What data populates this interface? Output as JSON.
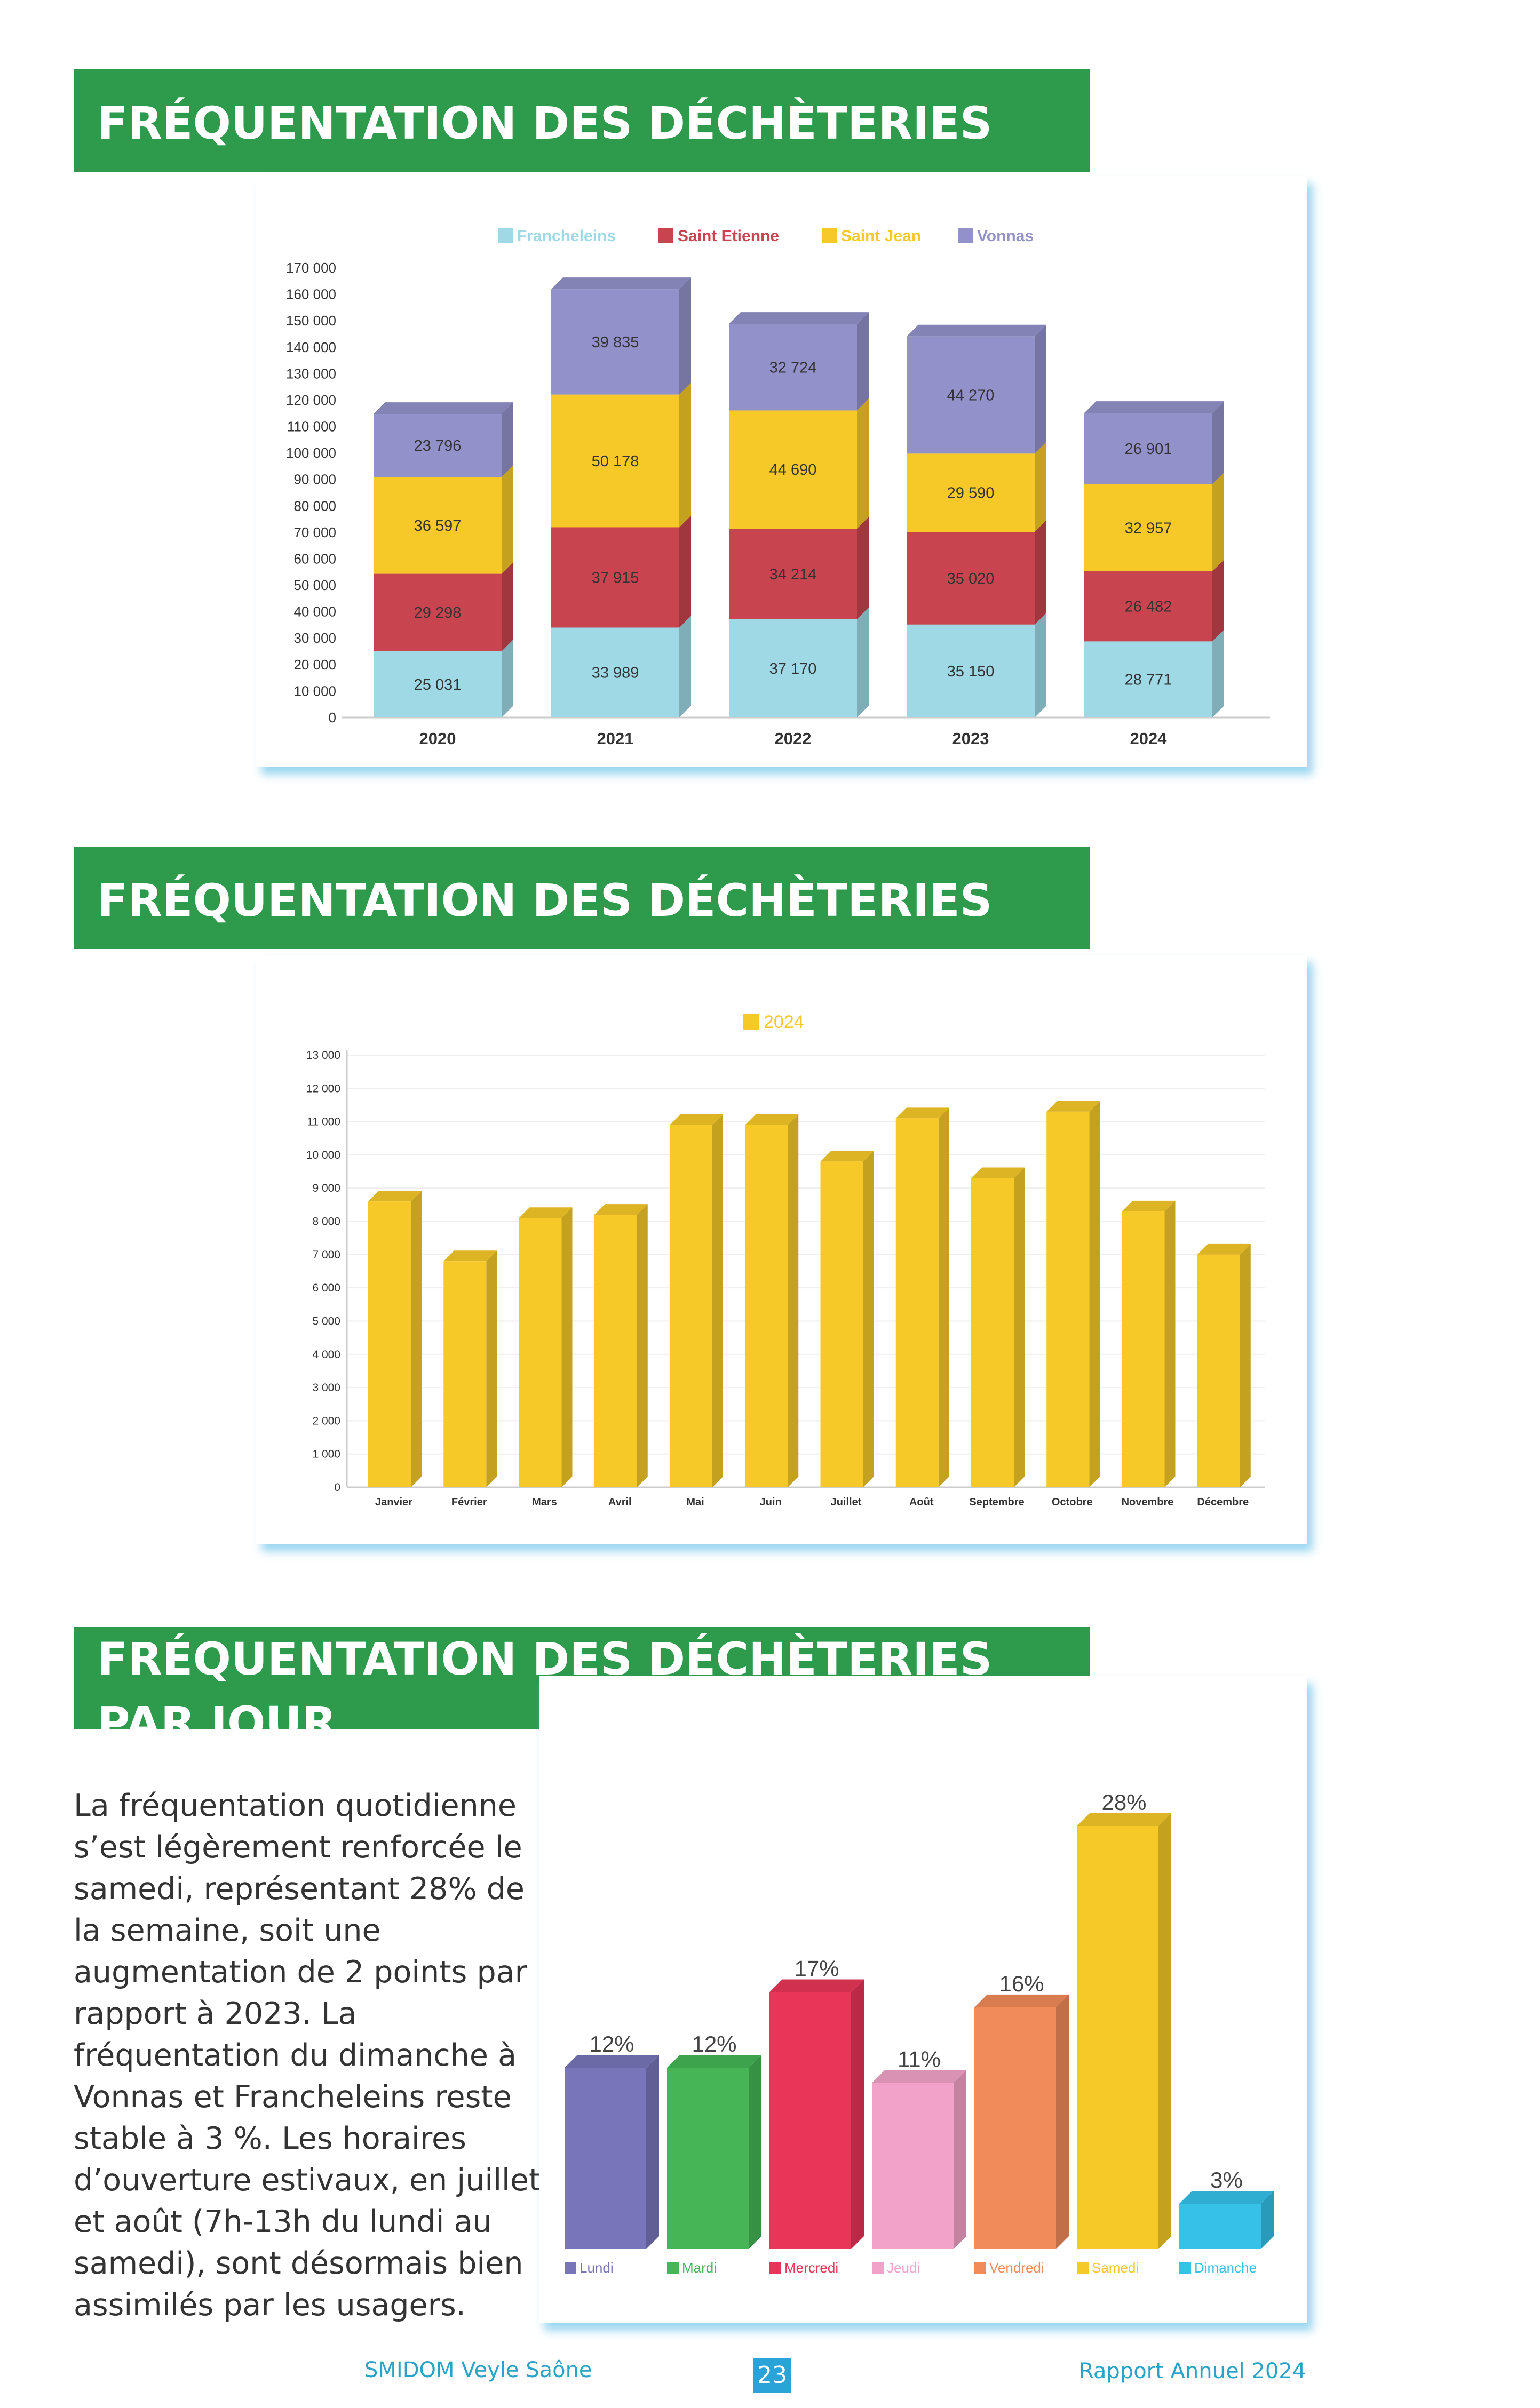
{
  "sections": [
    {
      "title": "FRÉQUENTATION DES DÉCHÈTERIES PAR AN"
    },
    {
      "title": "FRÉQUENTATION DES DÉCHÈTERIES PAR MOIS"
    },
    {
      "title": "FRÉQUENTATION DES DÉCHÈTERIES PAR JOUR"
    }
  ],
  "paragraph": "La fréquentation quotidienne s’est légèrement renforcée le samedi, représentant 28% de la semaine, soit une augmentation de 2 points par rapport à 2023. La fréquentation du dimanche à Vonnas et Francheleins reste stable à 3 %. Les horaires d’ouverture estivaux, en juillet et août (7h-13h du lundi au samedi), sont désormais bien assimilés par les usagers.",
  "footer": {
    "left": "SMIDOM Veyle Saône",
    "page": "23",
    "right": "Rapport Annuel 2024"
  },
  "chart_data": [
    {
      "type": "bar",
      "stacked": true,
      "categories": [
        "2020",
        "2021",
        "2022",
        "2023",
        "2024"
      ],
      "series": [
        {
          "name": "Francheleins",
          "color": "#9fd9e6",
          "values": [
            25031,
            33989,
            37170,
            35150,
            28771
          ],
          "labels": [
            "25 031",
            "33 989",
            "37 170",
            "35 150",
            "28 771"
          ]
        },
        {
          "name": "Saint Etienne",
          "color": "#c8454f",
          "values": [
            29298,
            37915,
            34214,
            35020,
            26482
          ],
          "labels": [
            "29 298",
            "37 915",
            "34 214",
            "35 020",
            "26 482"
          ]
        },
        {
          "name": "Saint Jean",
          "color": "#f6c928",
          "values": [
            36597,
            50178,
            44690,
            29590,
            32957
          ],
          "labels": [
            "36 597",
            "50 178",
            "44 690",
            "29 590",
            "32 957"
          ]
        },
        {
          "name": "Vonnas",
          "color": "#9391c9",
          "values": [
            23796,
            39835,
            32724,
            44270,
            26901
          ],
          "labels": [
            "23 796",
            "39 835",
            "32 724",
            "44 270",
            "26 901"
          ]
        }
      ],
      "ylim": [
        0,
        170000
      ],
      "yticks": [
        "0",
        "10 000",
        "20 000",
        "30 000",
        "40 000",
        "50 000",
        "60 000",
        "70 000",
        "80 000",
        "90 000",
        "100 000",
        "110 000",
        "120 000",
        "130 000",
        "140 000",
        "150 000",
        "160 000",
        "170 000"
      ],
      "legend": "top"
    },
    {
      "type": "bar",
      "categories": [
        "Janvier",
        "Février",
        "Mars",
        "Avril",
        "Mai",
        "Juin",
        "Juillet",
        "Août",
        "Septembre",
        "Octobre",
        "Novembre",
        "Décembre"
      ],
      "series": [
        {
          "name": "2024",
          "color": "#f6c928",
          "values": [
            8600,
            6800,
            8100,
            8200,
            10900,
            10900,
            9800,
            11100,
            9300,
            11300,
            8300,
            7000
          ]
        }
      ],
      "ylim": [
        0,
        13000
      ],
      "yticks": [
        "0",
        "1 000",
        "2 000",
        "3 000",
        "4 000",
        "5 000",
        "6 000",
        "7 000",
        "8 000",
        "9 000",
        "10 000",
        "11 000",
        "12 000",
        "13 000"
      ],
      "grid": true,
      "legend": "top"
    },
    {
      "type": "bar",
      "categories": [
        "Lundi",
        "Mardi",
        "Mercredi",
        "Jeudi",
        "Vendredi",
        "Samedi",
        "Dimanche"
      ],
      "values": [
        12,
        12,
        17,
        11,
        16,
        28,
        3
      ],
      "labels": [
        "12%",
        "12%",
        "17%",
        "11%",
        "16%",
        "28%",
        "3%"
      ],
      "colors": [
        "#7875ba",
        "#45b556",
        "#e93558",
        "#f2a2c8",
        "#f18b5a",
        "#f6c928",
        "#35c1e8"
      ],
      "ylim": [
        0,
        28
      ],
      "legend": "bottom"
    }
  ]
}
